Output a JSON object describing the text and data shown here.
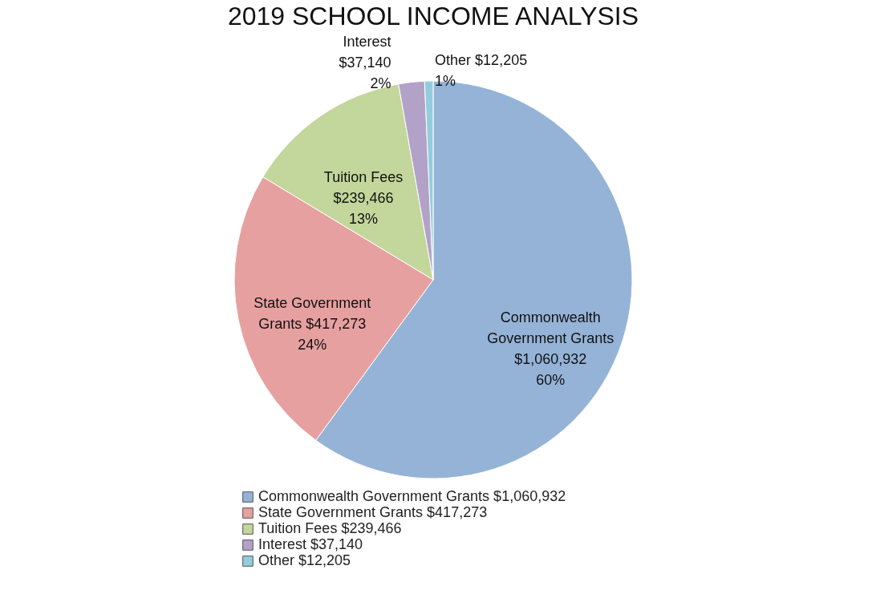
{
  "chart_data": {
    "type": "pie",
    "title": "2019 SCHOOL INCOME ANALYSIS",
    "categories": [
      "Commonwealth Government Grants  $1,060,932",
      "State Government Grants  $417,273",
      "Tuition Fees  $239,466",
      "Interest   $37,140",
      "Other  $12,205"
    ],
    "values": [
      1060932,
      417273,
      239466,
      37140,
      12205
    ],
    "colors": [
      "#95b3d7",
      "#e6a0a0",
      "#c3d69b",
      "#b3a2c7",
      "#93cddd"
    ],
    "value_labels": [
      "Commonwealth\nGovernment Grants\n$1,060,932\n60%",
      "State Government\nGrants  $417,273\n24%",
      "Tuition Fees\n$239,466\n13%",
      "Interest\n$37,140\n2%",
      "Other  $12,205\n1%"
    ],
    "legend": "bottom"
  }
}
